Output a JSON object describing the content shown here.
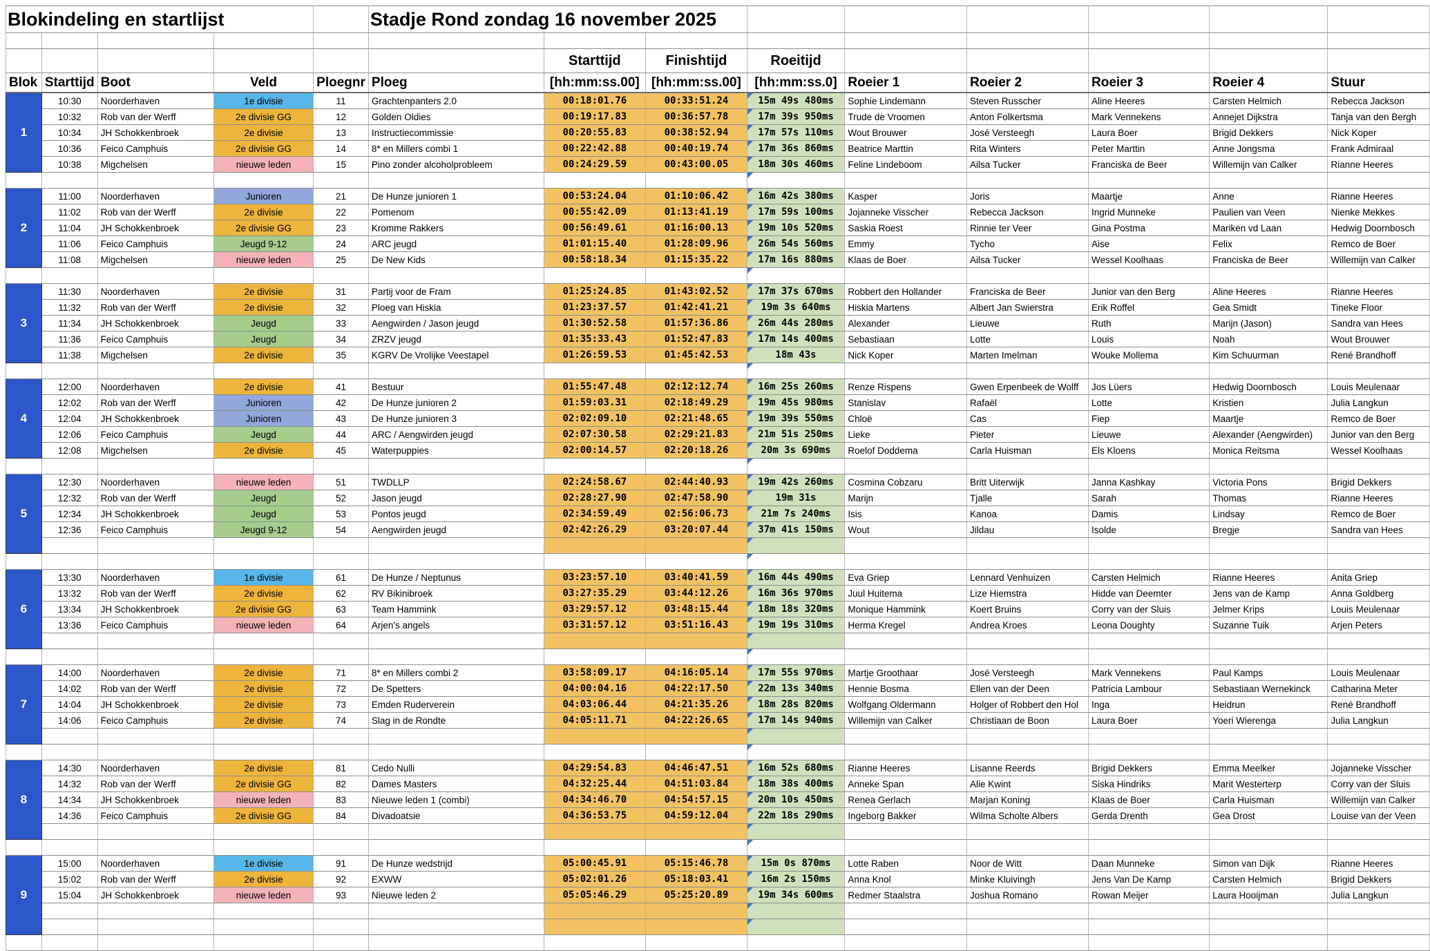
{
  "title": "Blokindeling en startlijst",
  "subtitle": "Stadje Rond zondag 16 november 2025",
  "header_group": {
    "starttijd": "Starttijd",
    "finishtijd": "Finishtijd",
    "roeitijd": "Roeitijd"
  },
  "columns": {
    "blok": "Blok",
    "starttijd": "Starttijd",
    "boot": "Boot",
    "veld": "Veld",
    "ploegnr": "Ploegnr",
    "ploeg": "Ploeg",
    "start_format": "[hh:mm:ss.00]",
    "finish_format": "[hh:mm:ss.00]",
    "roei_format": "[hh:mm:ss.0]",
    "roeier1": "Roeier 1",
    "roeier2": "Roeier 2",
    "roeier3": "Roeier 3",
    "roeier4": "Roeier 4",
    "stuur": "Stuur"
  },
  "colors": {
    "blok_cell": "#2b57c8",
    "time_cell": "#f2c262",
    "roei_cell": "#cfe0bd",
    "comment_triangle": "#4472c4"
  },
  "veld_colors": {
    "1e divisie": "#58b6e8",
    "2e divisie": "#eeb53c",
    "2e divisie GG": "#eeb53c",
    "nieuwe leden": "#f3b3b7",
    "Junioren": "#92a7db",
    "Jeugd": "#a6cc8e",
    "Jeugd 9-12": "#a6cc8e"
  },
  "blocks": [
    {
      "nr": "1",
      "slots": 5,
      "rows": [
        [
          "10:30",
          "Noorderhaven",
          "1e divisie",
          "11",
          "Grachtenpanters 2.0",
          "00:18:01.76",
          "00:33:51.24",
          "15m 49s 480ms",
          "Sophie Lindemann",
          "Steven Russcher",
          "Aline Heeres",
          "Carsten Helmich",
          "Rebecca Jackson"
        ],
        [
          "10:32",
          "Rob van der Werff",
          "2e divisie GG",
          "12",
          "Golden Oldies",
          "00:19:17.83",
          "00:36:57.78",
          "17m 39s 950ms",
          "Trude de Vroomen",
          "Anton Folkertsma",
          "Mark Vennekens",
          "Annejet Dijkstra",
          "Tanja van den Bergh"
        ],
        [
          "10:34",
          "JH Schokkenbroek",
          "2e divisie",
          "13",
          "Instructiecommissie",
          "00:20:55.83",
          "00:38:52.94",
          "17m 57s 110ms",
          "Wout Brouwer",
          "José Versteegh",
          "Laura Boer",
          "Brigid Dekkers",
          "Nick Koper"
        ],
        [
          "10:36",
          "Feico Camphuis",
          "2e divisie GG",
          "14",
          "8* en Millers combi 1",
          "00:22:42.88",
          "00:40:19.74",
          "17m 36s 860ms",
          "Beatrice Marttin",
          "Rita Winters",
          "Peter Marttin",
          "Anne Jongsma",
          "Frank Admiraal"
        ],
        [
          "10:38",
          "Migchelsen",
          "nieuwe leden",
          "15",
          "Pino zonder alcoholprobleem",
          "00:24:29.59",
          "00:43:00.05",
          "18m 30s 460ms",
          "Feline Lindeboom",
          "Ailsa Tucker",
          "Franciska de Beer",
          "Willemijn van Calker",
          "Rianne Heeres"
        ]
      ]
    },
    {
      "nr": "2",
      "slots": 5,
      "rows": [
        [
          "11:00",
          "Noorderhaven",
          "Junioren",
          "21",
          "De Hunze junioren 1",
          "00:53:24.04",
          "01:10:06.42",
          "16m 42s 380ms",
          "Kasper",
          "Joris",
          "Maartje",
          "Anne",
          "Rianne Heeres"
        ],
        [
          "11:02",
          "Rob van der Werff",
          "2e divisie",
          "22",
          "Pomenom",
          "00:55:42.09",
          "01:13:41.19",
          "17m 59s 100ms",
          "Jojanneke Visscher",
          "Rebecca Jackson",
          "Ingrid Munneke",
          "Paulien van Veen",
          "Nienke Mekkes"
        ],
        [
          "11:04",
          "JH Schokkenbroek",
          "2e divisie GG",
          "23",
          "Kromme Rakkers",
          "00:56:49.61",
          "01:16:00.13",
          "19m 10s 520ms",
          "Saskia Roest",
          "Rinnie ter Veer",
          "Gina Postma",
          "Mariken vd Laan",
          "Hedwig Doornbosch"
        ],
        [
          "11:06",
          "Feico Camphuis",
          "Jeugd 9-12",
          "24",
          "ARC jeugd",
          "01:01:15.40",
          "01:28:09.96",
          "26m 54s 560ms",
          "Emmy",
          "Tycho",
          "Aise",
          "Felix",
          "Remco de Boer"
        ],
        [
          "11:08",
          "Migchelsen",
          "nieuwe leden",
          "25",
          "De New Kids",
          "00:58:18.34",
          "01:15:35.22",
          "17m 16s 880ms",
          "Klaas de Boer",
          "Ailsa Tucker",
          "Wessel Koolhaas",
          "Franciska de Beer",
          "Willemijn van Calker"
        ]
      ]
    },
    {
      "nr": "3",
      "slots": 5,
      "rows": [
        [
          "11:30",
          "Noorderhaven",
          "2e divisie",
          "31",
          "Partij voor de Fram",
          "01:25:24.85",
          "01:43:02.52",
          "17m 37s 670ms",
          "Robbert den Hollander",
          "Franciska de Beer",
          "Junior van den Berg",
          "Aline Heeres",
          "Rianne Heeres"
        ],
        [
          "11:32",
          "Rob van der Werff",
          "2e divisie",
          "32",
          "Ploeg van Hiskia",
          "01:23:37.57",
          "01:42:41.21",
          "19m 3s 640ms",
          "Hiskia Martens",
          "Albert Jan Swierstra",
          "Erik Roffel",
          "Gea Smidt",
          "Tineke Floor"
        ],
        [
          "11:34",
          "JH Schokkenbroek",
          "Jeugd",
          "33",
          "Aengwirden / Jason jeugd",
          "01:30:52.58",
          "01:57:36.86",
          "26m 44s 280ms",
          "Alexander",
          "Lieuwe",
          "Ruth",
          "Marijn (Jason)",
          "Sandra van Hees"
        ],
        [
          "11:36",
          "Feico Camphuis",
          "Jeugd",
          "34",
          "ZRZV jeugd",
          "01:35:33.43",
          "01:52:47.83",
          "17m 14s 400ms",
          "Sebastiaan",
          "Lotte",
          "Louis",
          "Noah",
          "Wout Brouwer"
        ],
        [
          "11:38",
          "Migchelsen",
          "2e divisie",
          "35",
          "KGRV De Vrolijke Veestapel",
          "01:26:59.53",
          "01:45:42.53",
          "18m 43s",
          "Nick Koper",
          "Marten Imelman",
          "Wouke Mollema",
          "Kim Schuurman",
          "René Brandhoff"
        ]
      ]
    },
    {
      "nr": "4",
      "slots": 5,
      "rows": [
        [
          "12:00",
          "Noorderhaven",
          "2e divisie",
          "41",
          "Bestuur",
          "01:55:47.48",
          "02:12:12.74",
          "16m 25s 260ms",
          "Renze Rispens",
          "Gwen Erpenbeek de Wolff",
          "Jos Lüers",
          "Hedwig Doornbosch",
          "Louis Meulenaar"
        ],
        [
          "12:02",
          "Rob van der Werff",
          "Junioren",
          "42",
          "De Hunze junioren 2",
          "01:59:03.31",
          "02:18:49.29",
          "19m 45s 980ms",
          "Stanislav",
          "Rafaël",
          "Lotte",
          "Kristien",
          "Julia Langkun"
        ],
        [
          "12:04",
          "JH Schokkenbroek",
          "Junioren",
          "43",
          "De Hunze junioren 3",
          "02:02:09.10",
          "02:21:48.65",
          "19m 39s 550ms",
          "Chloë",
          "Cas",
          "Fiep",
          "Maartje",
          "Remco de Boer"
        ],
        [
          "12:06",
          "Feico Camphuis",
          "Jeugd",
          "44",
          "ARC / Aengwirden jeugd",
          "02:07:30.58",
          "02:29:21.83",
          "21m 51s 250ms",
          "Lieke",
          "Pieter",
          "Lieuwe",
          "Alexander (Aengwirden)",
          "Junior van den Berg"
        ],
        [
          "12:08",
          "Migchelsen",
          "2e divisie",
          "45",
          "Waterpuppies",
          "02:00:14.57",
          "02:20:18.26",
          "20m 3s 690ms",
          "Roelof Doddema",
          "Carla Huisman",
          "Els Kloens",
          "Monica Reitsma",
          "Wessel Koolhaas"
        ]
      ]
    },
    {
      "nr": "5",
      "slots": 5,
      "rows": [
        [
          "12:30",
          "Noorderhaven",
          "nieuwe leden",
          "51",
          "TWDLLP",
          "02:24:58.67",
          "02:44:40.93",
          "19m 42s 260ms",
          "Cosmina Cobzaru",
          "Britt Uiterwijk",
          "Janna Kashkay",
          "Victoria Pons",
          "Brigid Dekkers"
        ],
        [
          "12:32",
          "Rob van der Werff",
          "Jeugd",
          "52",
          "Jason jeugd",
          "02:28:27.90",
          "02:47:58.90",
          "19m 31s",
          "Marijn",
          "Tjalle",
          "Sarah",
          "Thomas",
          "Rianne Heeres"
        ],
        [
          "12:34",
          "JH Schokkenbroek",
          "Jeugd",
          "53",
          "Pontos jeugd",
          "02:34:59.49",
          "02:56:06.73",
          "21m 7s 240ms",
          "Isis",
          "Kanoa",
          "Damis",
          "Lindsay",
          "Remco de Boer"
        ],
        [
          "12:36",
          "Feico Camphuis",
          "Jeugd 9-12",
          "54",
          "Aengwirden jeugd",
          "02:42:26.29",
          "03:20:07.44",
          "37m 41s 150ms",
          "Wout",
          "Jildau",
          "Isolde",
          "Bregje",
          "Sandra van Hees"
        ]
      ]
    },
    {
      "nr": "6",
      "slots": 5,
      "rows": [
        [
          "13:30",
          "Noorderhaven",
          "1e divisie",
          "61",
          "De Hunze / Neptunus",
          "03:23:57.10",
          "03:40:41.59",
          "16m 44s 490ms",
          "Eva Griep",
          "Lennard Venhuizen",
          "Carsten Helmich",
          "Rianne Heeres",
          "Anita Griep"
        ],
        [
          "13:32",
          "Rob van der Werff",
          "2e divisie",
          "62",
          "RV Bikinibroek",
          "03:27:35.29",
          "03:44:12.26",
          "16m 36s 970ms",
          "Juul Huitema",
          "Lize Hiemstra",
          "Hidde van Deemter",
          "Jens van de Kamp",
          "Anna Goldberg"
        ],
        [
          "13:34",
          "JH Schokkenbroek",
          "2e divisie GG",
          "63",
          "Team Hammink",
          "03:29:57.12",
          "03:48:15.44",
          "18m 18s 320ms",
          "Monique Hammink",
          "Koert Bruins",
          "Corry van der Sluis",
          "Jelmer Krips",
          "Louis Meulenaar"
        ],
        [
          "13:36",
          "Feico Camphuis",
          "nieuwe leden",
          "64",
          "Arjen's angels",
          "03:31:57.12",
          "03:51:16.43",
          "19m 19s 310ms",
          "Herma Kregel",
          "Andrea Kroes",
          "Leona Doughty",
          "Suzanne Tuik",
          "Arjen Peters"
        ]
      ]
    },
    {
      "nr": "7",
      "slots": 5,
      "rows": [
        [
          "14:00",
          "Noorderhaven",
          "2e divisie",
          "71",
          "8* en Millers combi 2",
          "03:58:09.17",
          "04:16:05.14",
          "17m 55s 970ms",
          "Martje Groothaar",
          "José Versteegh",
          "Mark Vennekens",
          "Paul Kamps",
          "Louis Meulenaar"
        ],
        [
          "14:02",
          "Rob van der Werff",
          "2e divisie",
          "72",
          "De Spetters",
          "04:00:04.16",
          "04:22:17.50",
          "22m 13s 340ms",
          "Hennie Bosma",
          "Ellen van der Deen",
          "Patricia Lambour",
          "Sebastiaan Wernekinck",
          "Catharina Meter"
        ],
        [
          "14:04",
          "JH Schokkenbroek",
          "2e divisie",
          "73",
          "Emden Ruderverein",
          "04:03:06.44",
          "04:21:35.26",
          "18m 28s 820ms",
          "Wolfgang Oldermann",
          "Holger of Robbert den Hol",
          "Inga",
          "Heidrun",
          "René Brandhoff"
        ],
        [
          "14:06",
          "Feico Camphuis",
          "2e divisie",
          "74",
          "Slag in de Rondte",
          "04:05:11.71",
          "04:22:26.65",
          "17m 14s 940ms",
          "Willemijn van Calker",
          "Christiaan de Boon",
          "Laura Boer",
          "Yoeri Wierenga",
          "Julia Langkun"
        ]
      ]
    },
    {
      "nr": "8",
      "slots": 5,
      "rows": [
        [
          "14:30",
          "Noorderhaven",
          "2e divisie",
          "81",
          "Cedo Nulli",
          "04:29:54.83",
          "04:46:47.51",
          "16m 52s 680ms",
          "Rianne Heeres",
          "Lisanne Reerds",
          "Brigid Dekkers",
          "Emma Meelker",
          "Jojanneke Visscher"
        ],
        [
          "14:32",
          "Rob van der Werff",
          "2e divisie GG",
          "82",
          "Dames Masters",
          "04:32:25.44",
          "04:51:03.84",
          "18m 38s 400ms",
          "Anneke Span",
          "Alie Kwint",
          "Siska Hindriks",
          "Marit Westerterp",
          "Corry van der Sluis"
        ],
        [
          "14:34",
          "JH Schokkenbroek",
          "nieuwe leden",
          "83",
          "Nieuwe leden 1 (combi)",
          "04:34:46.70",
          "04:54:57.15",
          "20m 10s 450ms",
          "Renea Gerlach",
          "Marjan Koning",
          "Klaas de Boer",
          "Carla Huisman",
          "Willemijn van Calker"
        ],
        [
          "14:36",
          "Feico Camphuis",
          "2e divisie GG",
          "84",
          "Divadoatsie",
          "04:36:53.75",
          "04:59:12.04",
          "22m 18s 290ms",
          "Ingeborg Bakker",
          "Wilma Scholte Albers",
          "Gerda Drenth",
          "Gea Drost",
          "Louise van der Veen"
        ]
      ]
    },
    {
      "nr": "9",
      "slots": 5,
      "rows": [
        [
          "15:00",
          "Noorderhaven",
          "1e divisie",
          "91",
          "De Hunze wedstrijd",
          "05:00:45.91",
          "05:15:46.78",
          "15m 0s 870ms",
          "Lotte Raben",
          "Noor de Witt",
          "Daan Munneke",
          "Simon van Dijk",
          "Rianne Heeres"
        ],
        [
          "15:02",
          "Rob van der Werff",
          "2e divisie",
          "92",
          "EXWW",
          "05:02:01.26",
          "05:18:03.41",
          "16m 2s 150ms",
          "Anna Knol",
          "Minke Kluivingh",
          "Jens Van De Kamp",
          "Carsten Helmich",
          "Brigid Dekkers"
        ],
        [
          "15:04",
          "JH Schokkenbroek",
          "nieuwe leden",
          "93",
          "Nieuwe leden 2",
          "05:05:46.29",
          "05:25:20.89",
          "19m 34s 600ms",
          "Redmer Staalstra",
          "Joshua Romano",
          "Rowan Meijer",
          "Laura Hooijman",
          "Julia Langkun"
        ]
      ]
    }
  ]
}
